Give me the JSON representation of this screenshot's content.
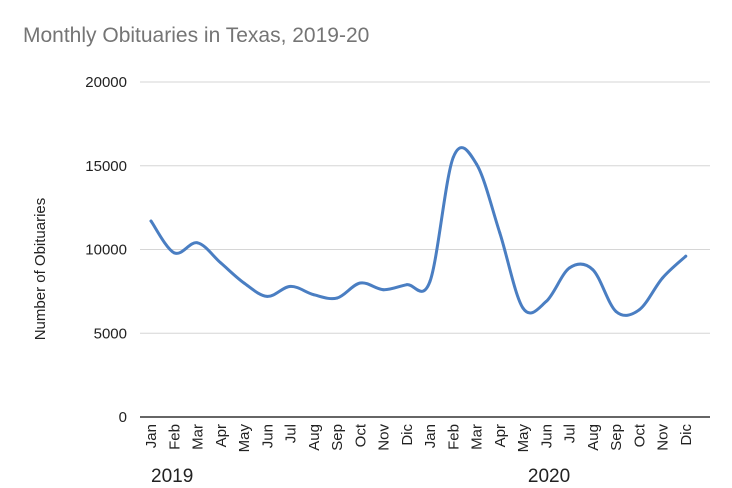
{
  "chart_data": {
    "type": "line",
    "title": "Monthly Obituaries in Texas, 2019-20",
    "xlabel": "",
    "ylabel": "Number of Obituaries",
    "ylim": [
      0,
      20000
    ],
    "yticks": [
      "0",
      "5000",
      "10000",
      "15000",
      "20000"
    ],
    "grid": true,
    "categories": [
      "Jan",
      "Feb",
      "Mar",
      "Apr",
      "May",
      "Jun",
      "Jul",
      "Aug",
      "Sep",
      "Oct",
      "Nov",
      "Dic",
      "Jan",
      "Feb",
      "Mar",
      "Apr",
      "May",
      "Jun",
      "Jul",
      "Aug",
      "Sep",
      "Oct",
      "Nov",
      "Dic"
    ],
    "groups": [
      {
        "label": "2019",
        "start": 0,
        "end": 11
      },
      {
        "label": "2020",
        "start": 12,
        "end": 23
      }
    ],
    "series": [
      {
        "color": "#4a7ec2",
        "values": [
          11700,
          9800,
          10400,
          9200,
          8000,
          7200,
          7800,
          7300,
          7100,
          8000,
          7600,
          7900,
          8100,
          15500,
          15100,
          11000,
          6500,
          6900,
          8900,
          8800,
          6300,
          6400,
          8300,
          9600
        ]
      }
    ]
  }
}
